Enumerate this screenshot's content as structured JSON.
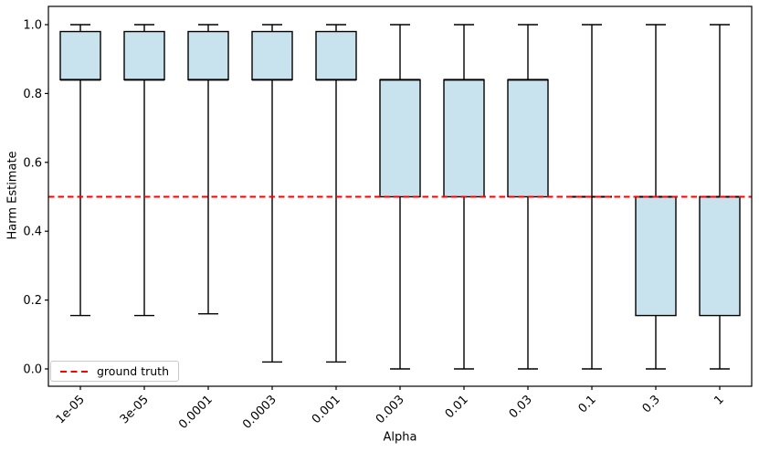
{
  "chart_data": {
    "type": "boxplot",
    "title": "",
    "xlabel": "Alpha",
    "ylabel": "Harm Estimate",
    "categories": [
      "1e-05",
      "3e-05",
      "0.0001",
      "0.0003",
      "0.001",
      "0.003",
      "0.01",
      "0.03",
      "0.1",
      "0.3",
      "1"
    ],
    "boxes": [
      {
        "category": "1e-05",
        "whisker_low": 0.155,
        "q1": 0.84,
        "median": 0.84,
        "q3": 0.98,
        "whisker_high": 1.0
      },
      {
        "category": "3e-05",
        "whisker_low": 0.155,
        "q1": 0.84,
        "median": 0.84,
        "q3": 0.98,
        "whisker_high": 1.0
      },
      {
        "category": "0.0001",
        "whisker_low": 0.16,
        "q1": 0.84,
        "median": 0.84,
        "q3": 0.98,
        "whisker_high": 1.0
      },
      {
        "category": "0.0003",
        "whisker_low": 0.02,
        "q1": 0.84,
        "median": 0.84,
        "q3": 0.98,
        "whisker_high": 1.0
      },
      {
        "category": "0.001",
        "whisker_low": 0.02,
        "q1": 0.84,
        "median": 0.84,
        "q3": 0.98,
        "whisker_high": 1.0
      },
      {
        "category": "0.003",
        "whisker_low": 0.0,
        "q1": 0.5,
        "median": 0.84,
        "q3": 0.84,
        "whisker_high": 1.0
      },
      {
        "category": "0.01",
        "whisker_low": 0.0,
        "q1": 0.5,
        "median": 0.84,
        "q3": 0.84,
        "whisker_high": 1.0
      },
      {
        "category": "0.03",
        "whisker_low": 0.0,
        "q1": 0.5,
        "median": 0.84,
        "q3": 0.84,
        "whisker_high": 1.0
      },
      {
        "category": "0.1",
        "whisker_low": 0.0,
        "q1": 0.5,
        "median": 0.5,
        "q3": 0.5,
        "whisker_high": 1.0
      },
      {
        "category": "0.3",
        "whisker_low": 0.0,
        "q1": 0.155,
        "median": 0.5,
        "q3": 0.5,
        "whisker_high": 1.0
      },
      {
        "category": "1",
        "whisker_low": 0.0,
        "q1": 0.155,
        "median": 0.5,
        "q3": 0.5,
        "whisker_high": 1.0
      }
    ],
    "yticks": {
      "values": [
        0.0,
        0.2,
        0.4,
        0.6,
        0.8,
        1.0
      ],
      "labels": [
        "0.0",
        "0.2",
        "0.4",
        "0.6",
        "0.8",
        "1.0"
      ]
    },
    "ylim": [
      -0.05,
      1.06
    ],
    "grid": false,
    "reference_line": {
      "value": 0.5,
      "label": "ground truth",
      "color": "#ff0000",
      "style": "dashed"
    },
    "legend": {
      "position": "lower-left",
      "entries": [
        {
          "label": "ground truth",
          "color": "#ff0000",
          "line_style": "dashed"
        }
      ]
    },
    "colors": {
      "box_fill": "#c8e2ee",
      "line": "#000000",
      "reference": "#ff0000",
      "legend_border": "#c9c9c9",
      "text": "#000000"
    }
  }
}
